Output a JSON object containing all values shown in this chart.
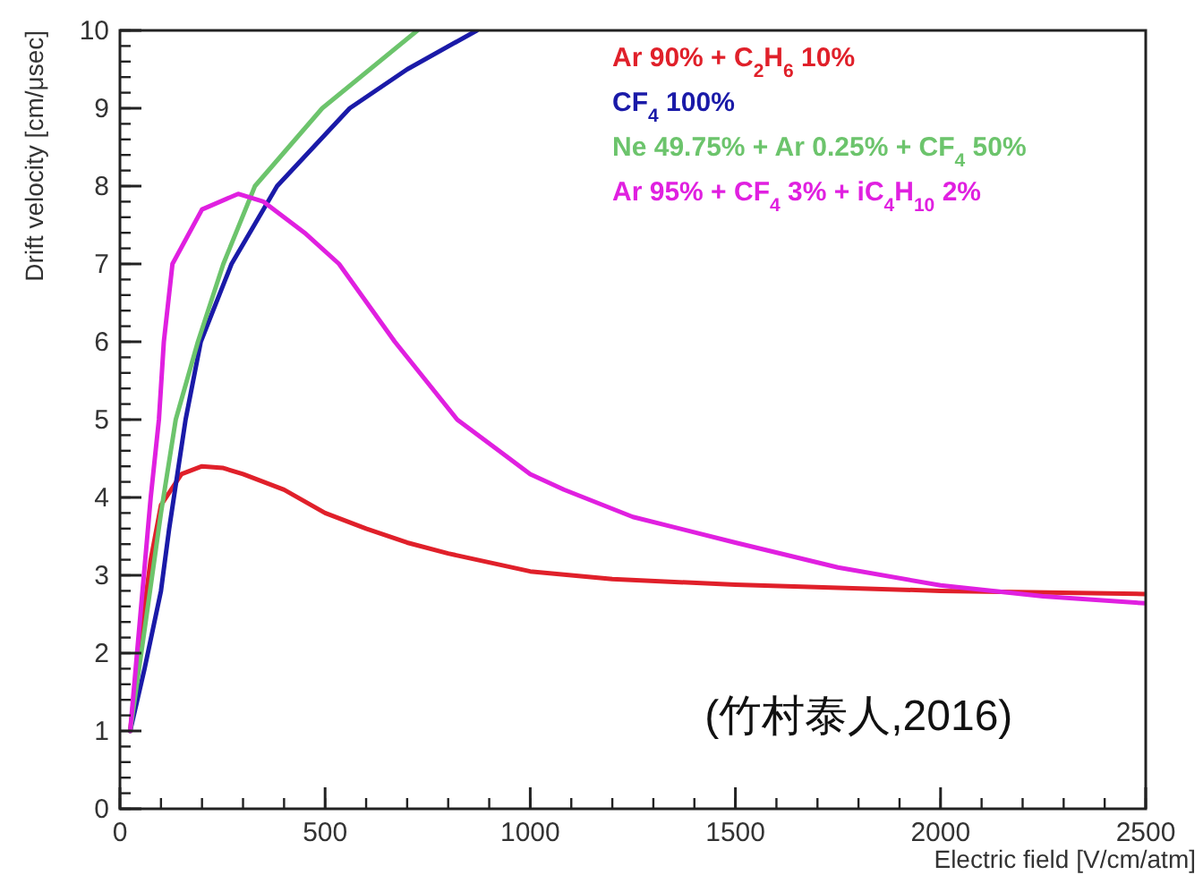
{
  "chart_data": {
    "type": "line",
    "xlabel": "Electric field [V/cm/atm]",
    "ylabel": "Drift velocity [cm/μsec]",
    "xlim": [
      0,
      2500
    ],
    "xticks": [
      0,
      500,
      1000,
      1500,
      2000,
      2500
    ],
    "ylim": [
      0,
      10
    ],
    "yticks": [
      0,
      1,
      2,
      3,
      4,
      5,
      6,
      7,
      8,
      9,
      10
    ],
    "grid": false,
    "legend": "top right",
    "marker": "none",
    "line_style": "solid",
    "series": [
      {
        "name": "Ar 90% + C$_{2}$H$_{6}$ 10%",
        "color": "#e0202a",
        "x": [
          25,
          50,
          75,
          100,
          150,
          200,
          250,
          300,
          400,
          500,
          600,
          700,
          800,
          1000,
          1200,
          1500,
          2000,
          2500
        ],
        "values": [
          1,
          2.2,
          3.2,
          3.9,
          4.3,
          4.4,
          4.38,
          4.3,
          4.1,
          3.8,
          3.6,
          3.42,
          3.28,
          3.05,
          2.95,
          2.88,
          2.8,
          2.76
        ]
      },
      {
        "name": "CF$_{4}$ 100%",
        "color": "#1a1aa8",
        "x": [
          25,
          60,
          100,
          120,
          160,
          197,
          272,
          383,
          560,
          700,
          870
        ],
        "values": [
          1,
          1.8,
          2.8,
          3.6,
          5,
          6,
          7,
          8,
          9,
          9.5,
          10
        ]
      },
      {
        "name": "Ne 49.75% + Ar 0.25% + CF$_{4}$ 50%",
        "color": "#6cc46c",
        "x": [
          25,
          60,
          100,
          136,
          190,
          252,
          329,
          493,
          725
        ],
        "values": [
          1,
          2.3,
          3.8,
          5,
          6,
          7,
          8,
          9,
          10
        ]
      },
      {
        "name": "Ar 95% + CF$_{4}$ 3% + iC$_{4}$H$_{10}$ 2%",
        "color": "#e020e0",
        "x": [
          25,
          50,
          75,
          95,
          107,
          128,
          200,
          288,
          350,
          450,
          534,
          670,
          822,
          1000,
          1082,
          1250,
          1500,
          1750,
          2000,
          2250,
          2500
        ],
        "values": [
          1,
          2.5,
          4,
          5,
          6,
          7,
          7.7,
          7.9,
          7.8,
          7.4,
          7,
          6,
          5,
          4.3,
          4.1,
          3.75,
          3.42,
          3.1,
          2.87,
          2.73,
          2.64
        ]
      }
    ],
    "annotations": [
      "(竹村泰人,2016)"
    ]
  }
}
